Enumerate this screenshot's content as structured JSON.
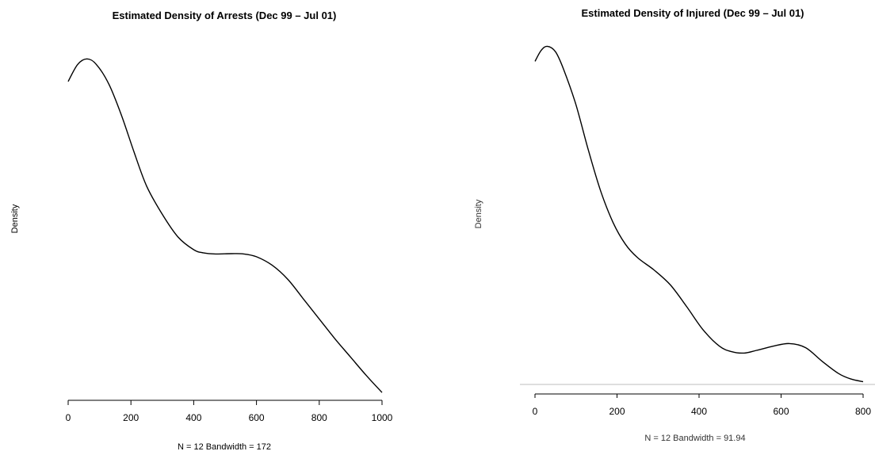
{
  "chart_data": [
    {
      "type": "line",
      "title": "Estimated Density of Arrests (Dec 99 – Jul 01)",
      "xlabel": "N = 12   Bandwidth = 172",
      "ylabel": "Density",
      "xlim": [
        0,
        1000
      ],
      "ylim": [
        0,
        0.0012
      ],
      "xticks": [
        "0",
        "200",
        "400",
        "600",
        "800",
        "1000"
      ],
      "x": [
        0,
        30,
        60,
        90,
        130,
        170,
        210,
        250,
        300,
        350,
        400,
        430,
        470,
        520,
        560,
        600,
        650,
        700,
        750,
        800,
        850,
        900,
        950,
        1000
      ],
      "y": [
        0.00108,
        0.00114,
        0.00116,
        0.00114,
        0.00107,
        0.00096,
        0.00083,
        0.00071,
        0.00061,
        0.00053,
        0.000485,
        0.000474,
        0.00047,
        0.000471,
        0.00047,
        0.00046,
        0.00043,
        0.00038,
        0.00031,
        0.00024,
        0.00017,
        0.000105,
        4e-05,
        -2e-05
      ]
    },
    {
      "type": "line",
      "title": "Estimated Density of Injured (Dec 99 – Jul 01)",
      "xlabel": "N = 12   Bandwidth = 91.94",
      "ylabel": "Density",
      "xlim": [
        0,
        800
      ],
      "ylim": [
        0,
        0.0025
      ],
      "xticks": [
        "0",
        "200",
        "400",
        "600",
        "800"
      ],
      "x": [
        0,
        15,
        30,
        50,
        70,
        100,
        130,
        160,
        190,
        220,
        250,
        290,
        330,
        370,
        410,
        450,
        480,
        510,
        540,
        580,
        620,
        660,
        700,
        740,
        770,
        800
      ],
      "y": [
        0.00237,
        0.00245,
        0.00248,
        0.00244,
        0.00231,
        0.00205,
        0.00172,
        0.00142,
        0.00119,
        0.00103,
        0.00093,
        0.00084,
        0.00073,
        0.00057,
        0.0004,
        0.00028,
        0.00024,
        0.00023,
        0.00025,
        0.00028,
        0.0003,
        0.00027,
        0.00017,
        8e-05,
        4e-05,
        2e-05
      ]
    }
  ]
}
